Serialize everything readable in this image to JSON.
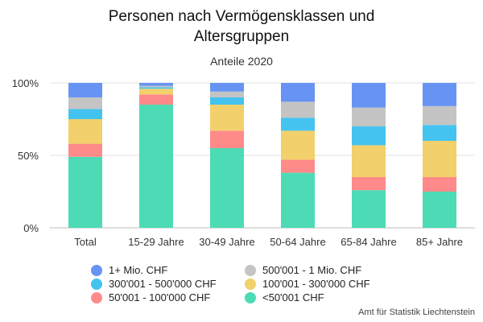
{
  "chart_data": {
    "type": "bar",
    "stacked": true,
    "title": "Personen nach Vermögensklassen und Altersgruppen",
    "title_lines": [
      "Personen nach Vermögensklassen und",
      "Altersgruppen"
    ],
    "subtitle": "Anteile 2020",
    "xlabel": "",
    "ylabel": "",
    "ylim": [
      0,
      100
    ],
    "yticks": [
      0,
      50,
      100
    ],
    "ytick_labels": [
      "0%",
      "50%",
      "100%"
    ],
    "grid": true,
    "legend_position": "bottom",
    "categories": [
      "Total",
      "15-29 Jahre",
      "30-49 Jahre",
      "50-64 Jahre",
      "65-84 Jahre",
      "85+ Jahre"
    ],
    "series": [
      {
        "name": "<50'001 CHF",
        "color": "#4ddbb5",
        "values": [
          49,
          85,
          55,
          38,
          26,
          25
        ]
      },
      {
        "name": "50'001 - 100'000 CHF",
        "color": "#ff8a8a",
        "values": [
          9,
          7,
          12,
          9,
          9,
          10
        ]
      },
      {
        "name": "100'001 - 300'000 CHF",
        "color": "#f2d06b",
        "values": [
          17,
          4,
          18,
          20,
          22,
          25
        ]
      },
      {
        "name": "300'001 - 500'000 CHF",
        "color": "#45c3f0",
        "values": [
          7,
          1,
          5,
          9,
          13,
          11
        ]
      },
      {
        "name": "500'001 - 1 Mio. CHF",
        "color": "#c4c4c4",
        "values": [
          8,
          1,
          4,
          11,
          13,
          13
        ]
      },
      {
        "name": "1+ Mio. CHF",
        "color": "#6794f4",
        "values": [
          10,
          2,
          6,
          13,
          17,
          16
        ]
      }
    ],
    "legend_order": [
      "1+ Mio. CHF",
      "500'001 - 1 Mio. CHF",
      "300'001 - 500'000 CHF",
      "100'001 - 300'000 CHF",
      "50'001 - 100'000 CHF",
      "<50'001 CHF"
    ]
  },
  "source": "Amt für Statistik Liechtenstein"
}
